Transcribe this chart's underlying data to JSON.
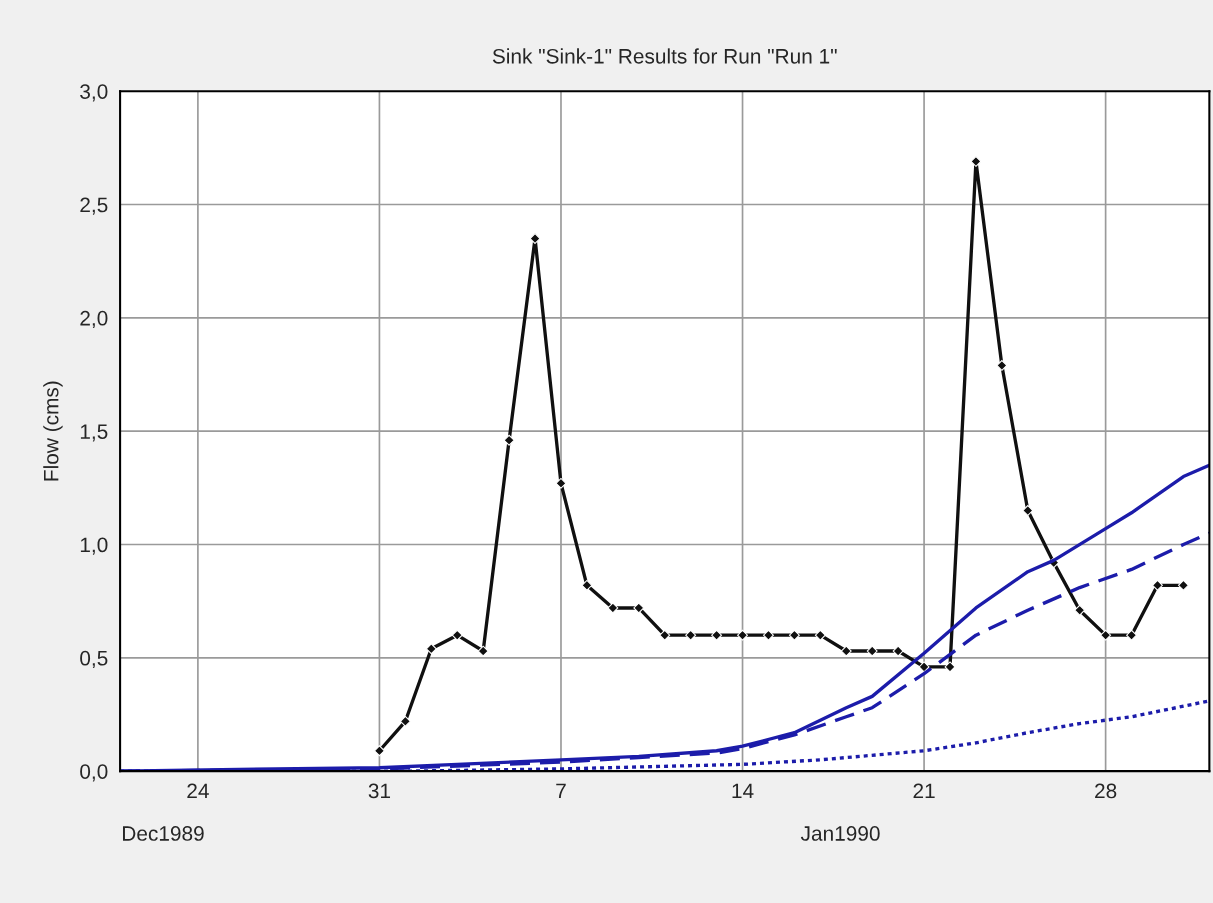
{
  "chart_data": {
    "type": "line",
    "title": "Sink \"Sink-1\" Results for Run \"Run 1\"",
    "ylabel": "Flow (cms)",
    "annotations": [
      "Dec1989",
      "Jan1990"
    ],
    "xlim": [
      "1989-12-21",
      "1990-02-01"
    ],
    "xticks": [
      {
        "value": "1989-12-24",
        "label": "24"
      },
      {
        "value": "1989-12-31",
        "label": "31"
      },
      {
        "value": "1990-01-07",
        "label": "7"
      },
      {
        "value": "1990-01-14",
        "label": "14"
      },
      {
        "value": "1990-01-21",
        "label": "21"
      },
      {
        "value": "1990-01-28",
        "label": "28"
      }
    ],
    "ylim": [
      0,
      3.0
    ],
    "yticks": [
      {
        "value": 0,
        "label": "0,0"
      },
      {
        "value": 0.5,
        "label": "0,5"
      },
      {
        "value": 1.0,
        "label": "1,0"
      },
      {
        "value": 1.5,
        "label": "1,5"
      },
      {
        "value": 2.0,
        "label": "2,0"
      },
      {
        "value": 2.5,
        "label": "2,5"
      },
      {
        "value": 3.0,
        "label": "3,0"
      }
    ],
    "grid": true,
    "series": [
      {
        "color": "#101010",
        "marker": "diamond",
        "line_style": "solid",
        "x": [
          "1989-12-31",
          "1990-01-01",
          "1990-01-02",
          "1990-01-03",
          "1990-01-04",
          "1990-01-05",
          "1990-01-06",
          "1990-01-07",
          "1990-01-08",
          "1990-01-09",
          "1990-01-10",
          "1990-01-11",
          "1990-01-12",
          "1990-01-13",
          "1990-01-14",
          "1990-01-15",
          "1990-01-16",
          "1990-01-17",
          "1990-01-18",
          "1990-01-19",
          "1990-01-20",
          "1990-01-21",
          "1990-01-22",
          "1990-01-23",
          "1990-01-24",
          "1990-01-25",
          "1990-01-26",
          "1990-01-27",
          "1990-01-28",
          "1990-01-29",
          "1990-01-30",
          "1990-01-31"
        ],
        "values": [
          0.09,
          0.22,
          0.54,
          0.6,
          0.53,
          1.46,
          2.35,
          1.27,
          0.82,
          0.72,
          0.72,
          0.6,
          0.6,
          0.6,
          0.6,
          0.6,
          0.6,
          0.6,
          0.53,
          0.53,
          0.53,
          0.46,
          0.46,
          2.69,
          1.79,
          1.15,
          0.92,
          0.71,
          0.6,
          0.6,
          0.82,
          0.82
        ]
      },
      {
        "color": "#1c1caa",
        "marker": "none",
        "line_style": "solid",
        "x": [
          "1989-12-21",
          "1989-12-27",
          "1989-12-31",
          "1990-01-03",
          "1990-01-07",
          "1990-01-10",
          "1990-01-13",
          "1990-01-14",
          "1990-01-16",
          "1990-01-18",
          "1990-01-19",
          "1990-01-21",
          "1990-01-23",
          "1990-01-25",
          "1990-01-26",
          "1990-01-28",
          "1990-01-29",
          "1990-01-31",
          "1990-02-01"
        ],
        "values": [
          0.0,
          0.01,
          0.015,
          0.03,
          0.05,
          0.065,
          0.09,
          0.11,
          0.17,
          0.28,
          0.33,
          0.52,
          0.72,
          0.88,
          0.93,
          1.07,
          1.14,
          1.3,
          1.35
        ]
      },
      {
        "color": "#1c1caa",
        "marker": "none",
        "line_style": "dashed",
        "x": [
          "1989-12-21",
          "1989-12-31",
          "1990-01-07",
          "1990-01-10",
          "1990-01-13",
          "1990-01-14",
          "1990-01-16",
          "1990-01-18",
          "1990-01-19",
          "1990-01-21",
          "1990-01-23",
          "1990-01-25",
          "1990-01-27",
          "1990-01-29",
          "1990-01-31",
          "1990-02-01"
        ],
        "values": [
          0.0,
          0.01,
          0.04,
          0.06,
          0.08,
          0.1,
          0.16,
          0.24,
          0.28,
          0.43,
          0.6,
          0.71,
          0.81,
          0.89,
          1.0,
          1.05
        ]
      },
      {
        "color": "#1c1caa",
        "marker": "none",
        "line_style": "dotted",
        "x": [
          "1989-12-21",
          "1990-01-01",
          "1990-01-07",
          "1990-01-14",
          "1990-01-17",
          "1990-01-21",
          "1990-01-23",
          "1990-01-25",
          "1990-01-27",
          "1990-01-29",
          "1990-02-01"
        ],
        "values": [
          0.0,
          0.0,
          0.01,
          0.03,
          0.05,
          0.09,
          0.125,
          0.17,
          0.21,
          0.24,
          0.31
        ]
      }
    ]
  }
}
